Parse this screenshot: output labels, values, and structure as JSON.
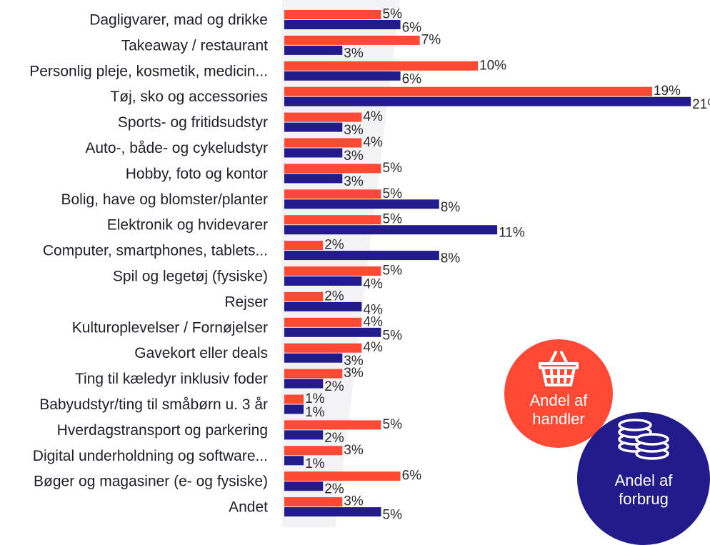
{
  "colors": {
    "handler": "#fe4a35",
    "forbrug": "#221b8c",
    "bg_stripe": "#f3f3f6"
  },
  "legend": {
    "handler": {
      "line1": "Andel af",
      "line2": "handler",
      "icon": "shopping-basket-icon"
    },
    "forbrug": {
      "line1": "Andel af",
      "line2": "forbrug",
      "icon": "coin-stack-icon"
    }
  },
  "chart_data": {
    "type": "bar",
    "orientation": "horizontal",
    "value_suffix": "%",
    "categories": [
      "Dagligvarer, mad og drikke",
      "Takeaway / restaurant",
      "Personlig pleje, kosmetik, medicin...",
      "Tøj, sko og accessories",
      "Sports- og fritidsudstyr",
      "Auto-, både- og cykeludstyr",
      "Hobby, foto og kontor",
      "Bolig, have og blomster/planter",
      "Elektronik og hvidevarer",
      "Computer, smartphones, tablets...",
      "Spil og legetøj (fysiske)",
      "Rejser",
      "Kulturoplevelser / Fornøjelser",
      "Gavekort eller deals",
      "Ting til kæledyr inklusiv foder",
      "Babyudstyr/ting til småbørn u. 3 år",
      "Hverdagstransport og parkering",
      "Digital underholdning og software...",
      "Bøger og magasiner (e- og fysiske)",
      "Andet"
    ],
    "series": [
      {
        "name": "Andel af handler",
        "values": [
          5,
          7,
          10,
          19,
          4,
          4,
          5,
          5,
          5,
          2,
          5,
          2,
          4,
          4,
          3,
          1,
          5,
          3,
          6,
          3
        ]
      },
      {
        "name": "Andel af forbrug",
        "values": [
          6,
          3,
          6,
          21,
          3,
          3,
          3,
          8,
          11,
          8,
          4,
          4,
          5,
          3,
          2,
          1,
          2,
          1,
          2,
          5
        ]
      }
    ],
    "xlim": [
      0,
      21
    ],
    "grid": false,
    "legend_position": "bottom-right"
  }
}
